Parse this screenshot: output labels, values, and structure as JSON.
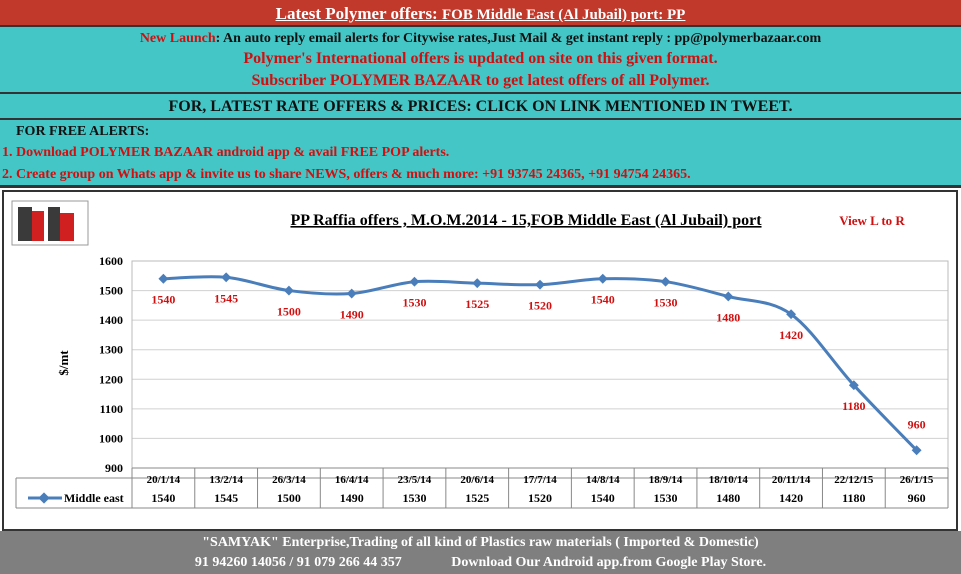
{
  "header": {
    "title_main": "Latest Polymer offers: ",
    "title_small": "FOB Middle East (Al Jubail) port: PP"
  },
  "announcement": {
    "new_launch_label": "New Launch",
    "new_launch_text": ": An auto reply email alerts for Citywise rates,Just Mail & get instant reply : pp@polymerbazaar.com",
    "line2": "Polymer's International offers is updated on site on this given format.",
    "line3": "Subscriber POLYMER BAZAAR to get latest offers of all Polymer."
  },
  "rate_banner": "FOR, LATEST RATE OFFERS & PRICES: CLICK ON LINK MENTIONED IN TWEET.",
  "alerts": {
    "heading": "FOR FREE ALERTS:",
    "item1": "1. Download POLYMER BAZAAR android app & avail FREE POP alerts.",
    "item2": "2. Create group on Whats app & invite us to share NEWS, offers & much more: +91 93745 24365, +91 94754 24365."
  },
  "chart_data": {
    "type": "line",
    "title_main": "PP Raffia offers , M.O.M.2014 - 15,",
    "title_small": "FOB Middle East (Al Jubail) port",
    "view_note": "View L to R",
    "ylabel": "$/mt",
    "xlabel": "",
    "ylim": [
      900,
      1600
    ],
    "yticks": [
      "1600",
      "1500",
      "1400",
      "1300",
      "1200",
      "1100",
      "1000",
      "900"
    ],
    "grid": true,
    "categories": [
      "20/1/14",
      "13/2/14",
      "26/3/14",
      "16/4/14",
      "23/5/14",
      "20/6/14",
      "17/7/14",
      "14/8/14",
      "18/9/14",
      "18/10/14",
      "20/11/14",
      "22/12/15",
      "26/1/15"
    ],
    "series": [
      {
        "name": "Middle east",
        "color": "#4a7ebb",
        "values": [
          1540,
          1545,
          1500,
          1490,
          1530,
          1525,
          1520,
          1540,
          1530,
          1480,
          1420,
          1180,
          960
        ],
        "labels": [
          "1540",
          "1545",
          "1500",
          "1490",
          "1530",
          "1525",
          "1520",
          "1540",
          "1530",
          "1480",
          "1420",
          "1180",
          "960"
        ]
      }
    ],
    "label_color": "#d01010"
  },
  "footer": {
    "line1": "\"SAMYAK\" Enterprise,Trading of all kind of Plastics raw materials ( Imported & Domestic)",
    "phones": "91 94260 14056 /  91 079 266 44 357",
    "app_text": "Download Our Android app.from Google Play Store."
  }
}
